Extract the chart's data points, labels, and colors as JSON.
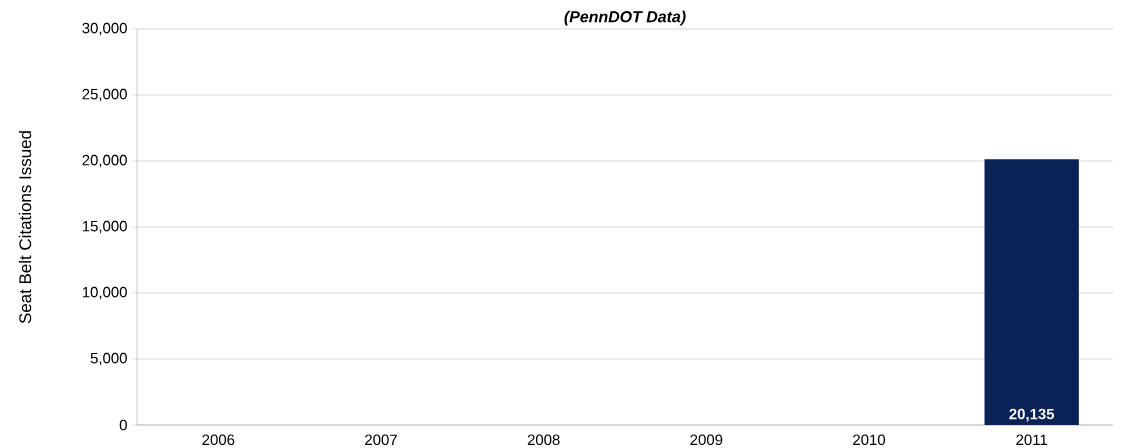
{
  "chart_data": {
    "type": "bar",
    "title": "(PennDOT Data)",
    "ylabel": "Seat Belt Citations Issued",
    "categories": [
      "2006",
      "2007",
      "2008",
      "2009",
      "2010",
      "2011"
    ],
    "values": [
      null,
      null,
      null,
      null,
      null,
      20135
    ],
    "value_labels": [
      null,
      null,
      null,
      null,
      null,
      "20,135"
    ],
    "color": "#0b2257",
    "ylim": [
      0,
      30000
    ],
    "yticks": [
      {
        "value": 0,
        "label": "0"
      },
      {
        "value": 5000,
        "label": "5,000"
      },
      {
        "value": 10000,
        "label": "10,000"
      },
      {
        "value": 15000,
        "label": "15,000"
      },
      {
        "value": 20000,
        "label": "20,000"
      },
      {
        "value": 25000,
        "label": "25,000"
      },
      {
        "value": 30000,
        "label": "30,000"
      }
    ],
    "grid": "y"
  }
}
